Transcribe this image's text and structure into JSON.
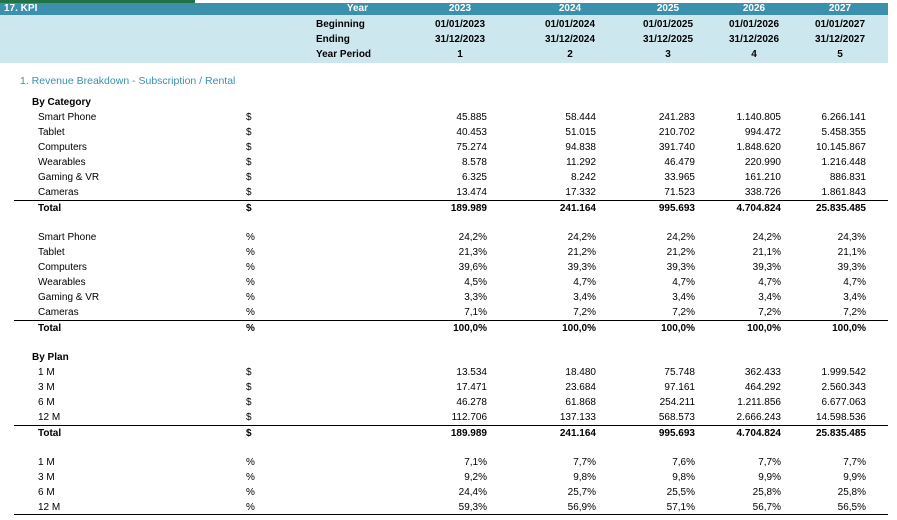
{
  "kpi_title": "17. KPI",
  "header": {
    "labels": [
      "Year",
      "Beginning",
      "Ending",
      "Year Period"
    ],
    "columns": [
      {
        "year": "2023",
        "beginning": "01/01/2023",
        "ending": "31/12/2023",
        "period": "1"
      },
      {
        "year": "2024",
        "beginning": "01/01/2024",
        "ending": "31/12/2024",
        "period": "2"
      },
      {
        "year": "2025",
        "beginning": "01/01/2025",
        "ending": "31/12/2025",
        "period": "3"
      },
      {
        "year": "2026",
        "beginning": "01/01/2026",
        "ending": "31/12/2026",
        "period": "4"
      },
      {
        "year": "2027",
        "beginning": "01/01/2027",
        "ending": "31/12/2027",
        "period": "5"
      }
    ]
  },
  "section_title": "1. Revenue Breakdown - Subscription / Rental",
  "by_category_title": "By Category",
  "category_values": {
    "unit": "$",
    "rows": [
      {
        "label": "Smart Phone",
        "values": [
          "45.885",
          "58.444",
          "241.283",
          "1.140.805",
          "6.266.141"
        ]
      },
      {
        "label": "Tablet",
        "values": [
          "40.453",
          "51.015",
          "210.702",
          "994.472",
          "5.458.355"
        ]
      },
      {
        "label": "Computers",
        "values": [
          "75.274",
          "94.838",
          "391.740",
          "1.848.620",
          "10.145.867"
        ]
      },
      {
        "label": "Wearables",
        "values": [
          "8.578",
          "11.292",
          "46.479",
          "220.990",
          "1.216.448"
        ]
      },
      {
        "label": "Gaming & VR",
        "values": [
          "6.325",
          "8.242",
          "33.965",
          "161.210",
          "886.831"
        ]
      },
      {
        "label": "Cameras",
        "values": [
          "13.474",
          "17.332",
          "71.523",
          "338.726",
          "1.861.843"
        ]
      }
    ],
    "total": {
      "label": "Total",
      "values": [
        "189.989",
        "241.164",
        "995.693",
        "4.704.824",
        "25.835.485"
      ]
    }
  },
  "category_percent": {
    "unit": "%",
    "rows": [
      {
        "label": "Smart Phone",
        "values": [
          "24,2%",
          "24,2%",
          "24,2%",
          "24,2%",
          "24,3%"
        ]
      },
      {
        "label": "Tablet",
        "values": [
          "21,3%",
          "21,2%",
          "21,2%",
          "21,1%",
          "21,1%"
        ]
      },
      {
        "label": "Computers",
        "values": [
          "39,6%",
          "39,3%",
          "39,3%",
          "39,3%",
          "39,3%"
        ]
      },
      {
        "label": "Wearables",
        "values": [
          "4,5%",
          "4,7%",
          "4,7%",
          "4,7%",
          "4,7%"
        ]
      },
      {
        "label": "Gaming & VR",
        "values": [
          "3,3%",
          "3,4%",
          "3,4%",
          "3,4%",
          "3,4%"
        ]
      },
      {
        "label": "Cameras",
        "values": [
          "7,1%",
          "7,2%",
          "7,2%",
          "7,2%",
          "7,2%"
        ]
      }
    ],
    "total": {
      "label": "Total",
      "values": [
        "100,0%",
        "100,0%",
        "100,0%",
        "100,0%",
        "100,0%"
      ]
    }
  },
  "by_plan_title": "By Plan",
  "plan_values": {
    "unit": "$",
    "rows": [
      {
        "label": "1 M",
        "values": [
          "13.534",
          "18.480",
          "75.748",
          "362.433",
          "1.999.542"
        ]
      },
      {
        "label": "3 M",
        "values": [
          "17.471",
          "23.684",
          "97.161",
          "464.292",
          "2.560.343"
        ]
      },
      {
        "label": "6 M",
        "values": [
          "46.278",
          "61.868",
          "254.211",
          "1.211.856",
          "6.677.063"
        ]
      },
      {
        "label": "12 M",
        "values": [
          "112.706",
          "137.133",
          "568.573",
          "2.666.243",
          "14.598.536"
        ]
      }
    ],
    "total": {
      "label": "Total",
      "values": [
        "189.989",
        "241.164",
        "995.693",
        "4.704.824",
        "25.835.485"
      ]
    }
  },
  "plan_percent": {
    "unit": "%",
    "rows": [
      {
        "label": "1 M",
        "values": [
          "7,1%",
          "7,7%",
          "7,6%",
          "7,7%",
          "7,7%"
        ]
      },
      {
        "label": "3 M",
        "values": [
          "9,2%",
          "9,8%",
          "9,8%",
          "9,9%",
          "9,9%"
        ]
      },
      {
        "label": "6 M",
        "values": [
          "24,4%",
          "25,7%",
          "25,5%",
          "25,8%",
          "25,8%"
        ]
      },
      {
        "label": "12 M",
        "values": [
          "59,3%",
          "56,9%",
          "57,1%",
          "56,7%",
          "56,5%"
        ]
      }
    ]
  },
  "colors": {
    "header_dark": "#3a90ad",
    "header_light": "#cde7ef",
    "section_text": "#3a90ad"
  }
}
